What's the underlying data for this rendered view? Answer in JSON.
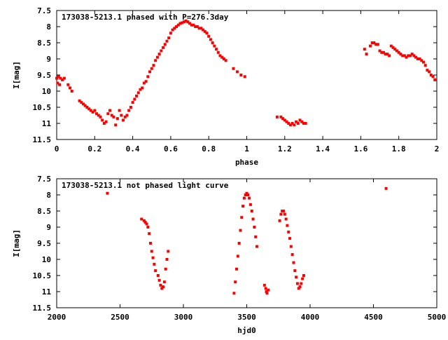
{
  "chart_data": [
    {
      "type": "scatter",
      "title": "173038-5213.1 phased with P=276.3day",
      "xlabel": "phase",
      "ylabel": "I[mag]",
      "xlim": [
        0,
        2
      ],
      "ylim": [
        7.5,
        11.5
      ],
      "y_inverted": true,
      "x_ticks": [
        "0",
        "0.2",
        "0.4",
        "0.6",
        "0.8",
        "1",
        "1.2",
        "1.4",
        "1.6",
        "1.8",
        "2"
      ],
      "y_ticks": [
        "7.5",
        "8",
        "8.5",
        "9",
        "9.5",
        "10",
        "10.5",
        "11",
        "11.5"
      ],
      "series": [
        {
          "color": "#ff0000",
          "x": [
            0.0,
            0.005,
            0.01,
            0.015,
            0.02,
            0.03,
            0.04,
            0.06,
            0.07,
            0.08,
            0.12,
            0.13,
            0.14,
            0.15,
            0.16,
            0.17,
            0.18,
            0.19,
            0.2,
            0.21,
            0.22,
            0.23,
            0.24,
            0.25,
            0.26,
            0.27,
            0.28,
            0.29,
            0.3,
            0.31,
            0.32,
            0.33,
            0.34,
            0.35,
            0.36,
            0.37,
            0.38,
            0.39,
            0.4,
            0.41,
            0.42,
            0.43,
            0.44,
            0.45,
            0.46,
            0.47,
            0.48,
            0.49,
            0.5,
            0.51,
            0.52,
            0.53,
            0.54,
            0.55,
            0.56,
            0.57,
            0.58,
            0.59,
            0.6,
            0.61,
            0.62,
            0.63,
            0.64,
            0.65,
            0.66,
            0.67,
            0.68,
            0.69,
            0.7,
            0.71,
            0.72,
            0.73,
            0.74,
            0.75,
            0.76,
            0.77,
            0.78,
            0.79,
            0.8,
            0.81,
            0.82,
            0.83,
            0.84,
            0.85,
            0.86,
            0.87,
            0.88,
            0.89,
            0.93,
            0.95,
            0.97,
            0.99,
            1.16,
            1.18,
            1.19,
            1.2,
            1.21,
            1.22,
            1.23,
            1.24,
            1.25,
            1.26,
            1.27,
            1.28,
            1.29,
            1.3,
            1.31,
            1.62,
            1.63,
            1.65,
            1.66,
            1.67,
            1.68,
            1.69,
            1.7,
            1.71,
            1.72,
            1.73,
            1.74,
            1.75,
            1.76,
            1.77,
            1.78,
            1.79,
            1.8,
            1.81,
            1.82,
            1.83,
            1.84,
            1.85,
            1.86,
            1.87,
            1.88,
            1.89,
            1.9,
            1.91,
            1.92,
            1.93,
            1.94,
            1.95,
            1.96,
            1.97,
            1.98,
            1.99
          ],
          "y": [
            9.6,
            9.75,
            9.55,
            9.8,
            9.6,
            9.65,
            9.6,
            9.8,
            9.9,
            10.0,
            10.3,
            10.35,
            10.4,
            10.45,
            10.5,
            10.55,
            10.6,
            10.65,
            10.6,
            10.7,
            10.75,
            10.8,
            10.9,
            11.0,
            10.95,
            10.7,
            10.6,
            10.75,
            10.8,
            11.05,
            10.85,
            10.6,
            10.75,
            10.9,
            10.8,
            10.75,
            10.6,
            10.5,
            10.35,
            10.25,
            10.15,
            10.05,
            9.95,
            9.9,
            9.75,
            9.7,
            9.55,
            9.4,
            9.3,
            9.2,
            9.05,
            8.95,
            8.85,
            8.75,
            8.65,
            8.55,
            8.45,
            8.35,
            8.2,
            8.1,
            8.05,
            8.0,
            7.95,
            7.9,
            7.88,
            7.85,
            7.82,
            7.85,
            7.9,
            7.95,
            7.95,
            8.0,
            8.0,
            8.05,
            8.05,
            8.1,
            8.15,
            8.2,
            8.3,
            8.4,
            8.5,
            8.6,
            8.7,
            8.8,
            8.9,
            8.95,
            9.0,
            9.05,
            9.3,
            9.4,
            9.5,
            9.55,
            10.8,
            10.8,
            10.85,
            10.9,
            10.95,
            11.0,
            11.05,
            11.0,
            11.05,
            10.95,
            11.0,
            10.9,
            10.95,
            11.0,
            11.0,
            8.7,
            8.85,
            8.6,
            8.5,
            8.5,
            8.55,
            8.55,
            8.75,
            8.8,
            8.8,
            8.85,
            8.85,
            8.9,
            8.6,
            8.65,
            8.7,
            8.75,
            8.8,
            8.85,
            8.9,
            8.9,
            8.95,
            8.9,
            8.9,
            8.85,
            8.9,
            8.95,
            9.0,
            9.0,
            9.05,
            9.1,
            9.2,
            9.35,
            9.4,
            9.5,
            9.55,
            9.65
          ]
        }
      ]
    },
    {
      "type": "scatter",
      "title": "173038-5213.1 not phased light curve",
      "xlabel": "hjd0",
      "ylabel": "I[mag]",
      "xlim": [
        2000,
        5000
      ],
      "ylim": [
        7.5,
        11.5
      ],
      "y_inverted": true,
      "x_ticks": [
        "2000",
        "2500",
        "3000",
        "3500",
        "4000",
        "4500",
        "5000"
      ],
      "y_ticks": [
        "7.5",
        "8",
        "8.5",
        "9",
        "9.5",
        "10",
        "10.5",
        "11",
        "11.5"
      ],
      "series": [
        {
          "color": "#ff0000",
          "x": [
            2400,
            2670,
            2690,
            2700,
            2710,
            2720,
            2730,
            2740,
            2750,
            2760,
            2770,
            2780,
            2800,
            2810,
            2820,
            2830,
            2840,
            2850,
            2860,
            2870,
            2880,
            3400,
            3410,
            3420,
            3430,
            3440,
            3450,
            3460,
            3470,
            3480,
            3490,
            3500,
            3510,
            3520,
            3530,
            3540,
            3550,
            3560,
            3570,
            3580,
            3640,
            3650,
            3655,
            3660,
            3670,
            3760,
            3770,
            3780,
            3790,
            3800,
            3810,
            3820,
            3830,
            3840,
            3850,
            3860,
            3870,
            3880,
            3890,
            3900,
            3910,
            3920,
            3930,
            3940,
            3950,
            4600
          ],
          "y": [
            7.95,
            8.75,
            8.8,
            8.85,
            8.9,
            9.0,
            9.2,
            9.5,
            9.75,
            9.95,
            10.15,
            10.35,
            10.5,
            10.65,
            10.8,
            10.9,
            10.85,
            10.7,
            10.3,
            10.0,
            9.75,
            11.05,
            10.7,
            10.3,
            9.9,
            9.5,
            9.1,
            8.7,
            8.35,
            8.1,
            8.0,
            7.95,
            8.0,
            8.1,
            8.3,
            8.5,
            8.75,
            9.0,
            9.3,
            9.6,
            10.8,
            10.9,
            11.0,
            11.05,
            10.95,
            8.8,
            8.6,
            8.5,
            8.5,
            8.6,
            8.75,
            8.95,
            9.15,
            9.35,
            9.6,
            9.85,
            10.1,
            10.35,
            10.55,
            10.75,
            10.9,
            10.85,
            10.75,
            10.6,
            10.5,
            7.8
          ]
        }
      ]
    }
  ]
}
